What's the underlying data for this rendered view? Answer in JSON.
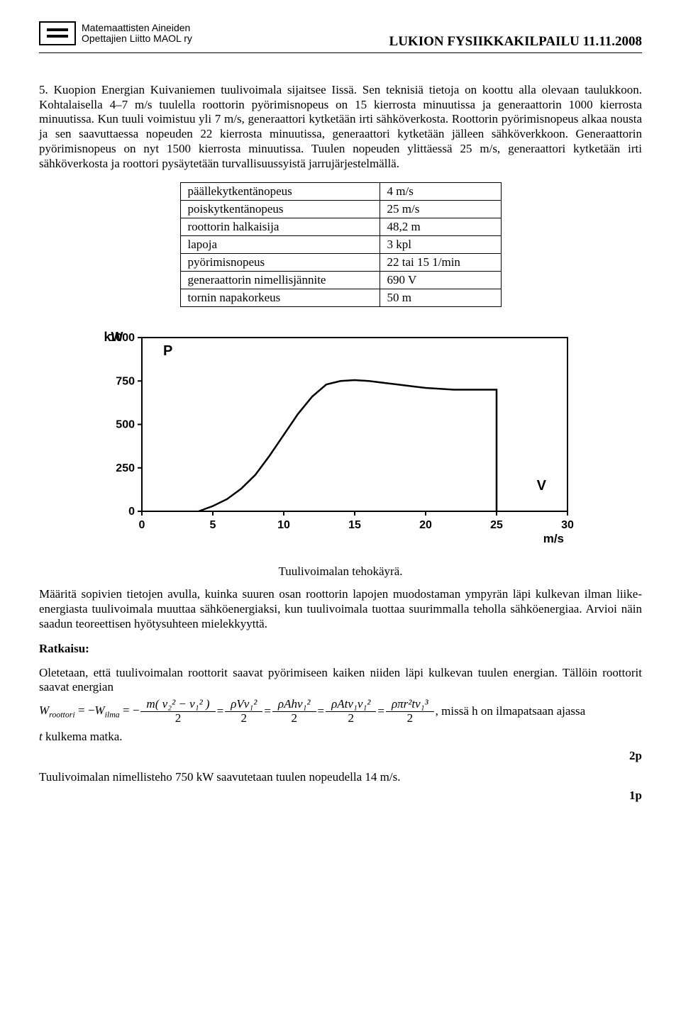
{
  "header": {
    "org_line1": "Matemaattisten Aineiden",
    "org_line2": "Opettajien Liitto MAOL ry",
    "title": "LUKION FYSIIKKAKILPAILU 11.11.2008"
  },
  "problem_number": "5.",
  "problem_text": "Kuopion Energian Kuivaniemen tuulivoimala sijaitsee Iissä. Sen teknisiä tietoja on koottu alla olevaan taulukkoon. Kohtalaisella 4–7 m/s tuulella roottorin pyörimisnopeus on 15 kierrosta minuutissa ja generaattorin 1000 kierrosta minuutissa. Kun tuuli voimistuu yli 7 m/s, generaattori kytketään irti sähköverkosta. Roottorin pyörimisnopeus alkaa nousta ja sen saavuttaessa nopeuden 22 kierrosta minuutissa, generaattori kytketään jälleen sähköverkkoon. Generaattorin pyörimisnopeus on nyt 1500 kierrosta minuutissa. Tuulen nopeuden ylittäessä 25 m/s, generaattori kytketään irti sähköverkosta ja roottori pysäytetään turvallisuussyistä jarrujärjestelmällä.",
  "spec_rows": [
    {
      "k": "päällekytkentänopeus",
      "v": "4 m/s"
    },
    {
      "k": "poiskytkentänopeus",
      "v": "25 m/s"
    },
    {
      "k": "roottorin halkaisija",
      "v": "48,2 m"
    },
    {
      "k": "lapoja",
      "v": "3 kpl"
    },
    {
      "k": "pyörimisnopeus",
      "v": "22 tai 15 1/min"
    },
    {
      "k": "generaattorin nimellisjännite",
      "v": "690 V"
    },
    {
      "k": "tornin napakorkeus",
      "v": "50 m"
    }
  ],
  "chart": {
    "type": "line",
    "y_label": "kW",
    "y_var": "P",
    "x_var": "V",
    "x_unit": "m/s",
    "xlim": [
      0,
      30
    ],
    "ylim": [
      0,
      1000
    ],
    "xticks": [
      0,
      5,
      10,
      15,
      20,
      25,
      30
    ],
    "yticks": [
      0,
      250,
      500,
      750,
      1000
    ],
    "line_color": "#000000",
    "line_width": 2.5,
    "grid": false,
    "border": true,
    "background_color": "#ffffff",
    "points": [
      {
        "x": 4.0,
        "y": 0
      },
      {
        "x": 5.0,
        "y": 30
      },
      {
        "x": 6.0,
        "y": 70
      },
      {
        "x": 7.0,
        "y": 130
      },
      {
        "x": 8.0,
        "y": 210
      },
      {
        "x": 9.0,
        "y": 320
      },
      {
        "x": 10.0,
        "y": 440
      },
      {
        "x": 11.0,
        "y": 560
      },
      {
        "x": 12.0,
        "y": 660
      },
      {
        "x": 13.0,
        "y": 730
      },
      {
        "x": 14.0,
        "y": 750
      },
      {
        "x": 15.0,
        "y": 755
      },
      {
        "x": 16.0,
        "y": 750
      },
      {
        "x": 17.0,
        "y": 740
      },
      {
        "x": 18.0,
        "y": 730
      },
      {
        "x": 19.0,
        "y": 720
      },
      {
        "x": 20.0,
        "y": 710
      },
      {
        "x": 21.0,
        "y": 705
      },
      {
        "x": 22.0,
        "y": 700
      },
      {
        "x": 23.0,
        "y": 700
      },
      {
        "x": 24.0,
        "y": 700
      },
      {
        "x": 25.0,
        "y": 700
      },
      {
        "x": 25.0,
        "y": 0
      }
    ]
  },
  "chart_caption": "Tuulivoimalan tehokäyrä.",
  "question_text": "Määritä sopivien tietojen avulla, kuinka suuren osan roottorin lapojen muodostaman ympyrän läpi kulkevan ilman liike-energiasta tuulivoimala muuttaa sähköenergiaksi, kun tuulivoimala tuottaa suurimmalla teholla sähköenergiaa. Arvioi näin saadun teoreettisen hyötysuhteen mielekkyyttä.",
  "solution_heading": "Ratkaisu:",
  "solution_intro": "Oletetaan, että tuulivoimalan roottorit saavat pyörimiseen kaiken niiden läpi kulkevan tuulen energian. Tällöin roottorit saavat energian",
  "eq": {
    "W_r": "W",
    "W_r_sub": "roottori",
    "W_i": "W",
    "W_i_sub": "ilma",
    "f1_num": "m( v₂² − v₁² )",
    "f1_den": "2",
    "f2_num": "ρVv₁²",
    "f2_den": "2",
    "f3_num": "ρAhv₁²",
    "f3_den": "2",
    "f4_num": "ρAtv₁v₁²",
    "f4_den": "2",
    "f5_num": "ρπr²tv₁³",
    "f5_den": "2",
    "tail": ", missä h on ilmapatsaan ajassa"
  },
  "t_line": "t kulkema matka.",
  "pts1": "2p",
  "final_text": "Tuulivoimalan nimellisteho 750 kW saavutetaan tuulen nopeudella 14 m/s.",
  "pts2": "1p"
}
